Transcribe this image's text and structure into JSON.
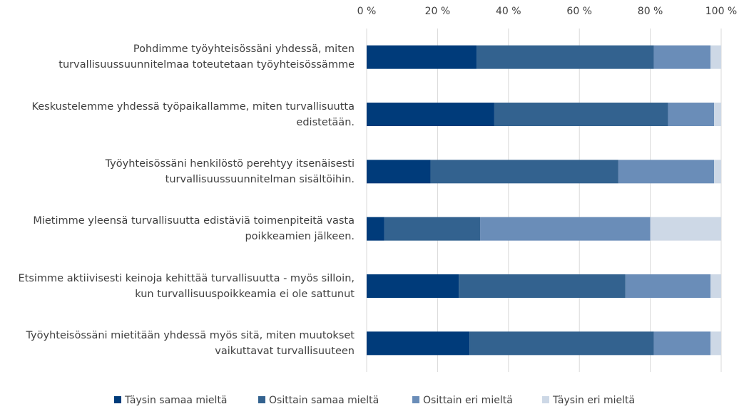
{
  "chart_data": {
    "type": "stacked_bar_horizontal",
    "categories": [
      "Pohdimme työyhteisössäni yhdessä, miten\nturvallisuussuunnitelmaa toteutetaan työyhteisössämme",
      "Keskustelemme yhdessä työpaikallamme, miten turvallisuutta\nedistetään.",
      "Työyhteisössäni henkilöstö perehtyy itsenäisesti\nturvallisuussuunnitelman sisältöihin.",
      "Mietimme yleensä turvallisuutta edistäviä toimenpiteitä vasta\npoikkeamien jälkeen.",
      "Etsimme aktiivisesti keinoja kehittää turvallisuutta - myös silloin,\nkun turvallisuuspoikkeamia ei ole sattunut",
      "Työyhteisössäni mietitään yhdessä myös sitä, miten muutokset\nvaikuttavat turvallisuuteen"
    ],
    "series": [
      {
        "name": "Täysin samaa mieltä",
        "color": "#003b7a",
        "values": [
          31,
          36,
          18,
          5,
          26,
          29
        ]
      },
      {
        "name": "Osittain samaa mieltä",
        "color": "#33628f",
        "values": [
          50,
          49,
          53,
          27,
          47,
          52
        ]
      },
      {
        "name": "Osittain eri mieltä",
        "color": "#6a8db8",
        "values": [
          16,
          13,
          27,
          48,
          24,
          16
        ]
      },
      {
        "name": "Täysin eri mieltä",
        "color": "#cdd8e6",
        "values": [
          3,
          2,
          2,
          20,
          3,
          3
        ]
      }
    ],
    "xlim": [
      0,
      100
    ],
    "xticks": [
      {
        "value": 0,
        "label": "0 %"
      },
      {
        "value": 20,
        "label": "20 %"
      },
      {
        "value": 40,
        "label": "40 %"
      },
      {
        "value": 60,
        "label": "60 %"
      },
      {
        "value": 80,
        "label": "80 %"
      },
      {
        "value": 100,
        "label": "100 %"
      }
    ],
    "grid": true,
    "legend": "bottom"
  }
}
